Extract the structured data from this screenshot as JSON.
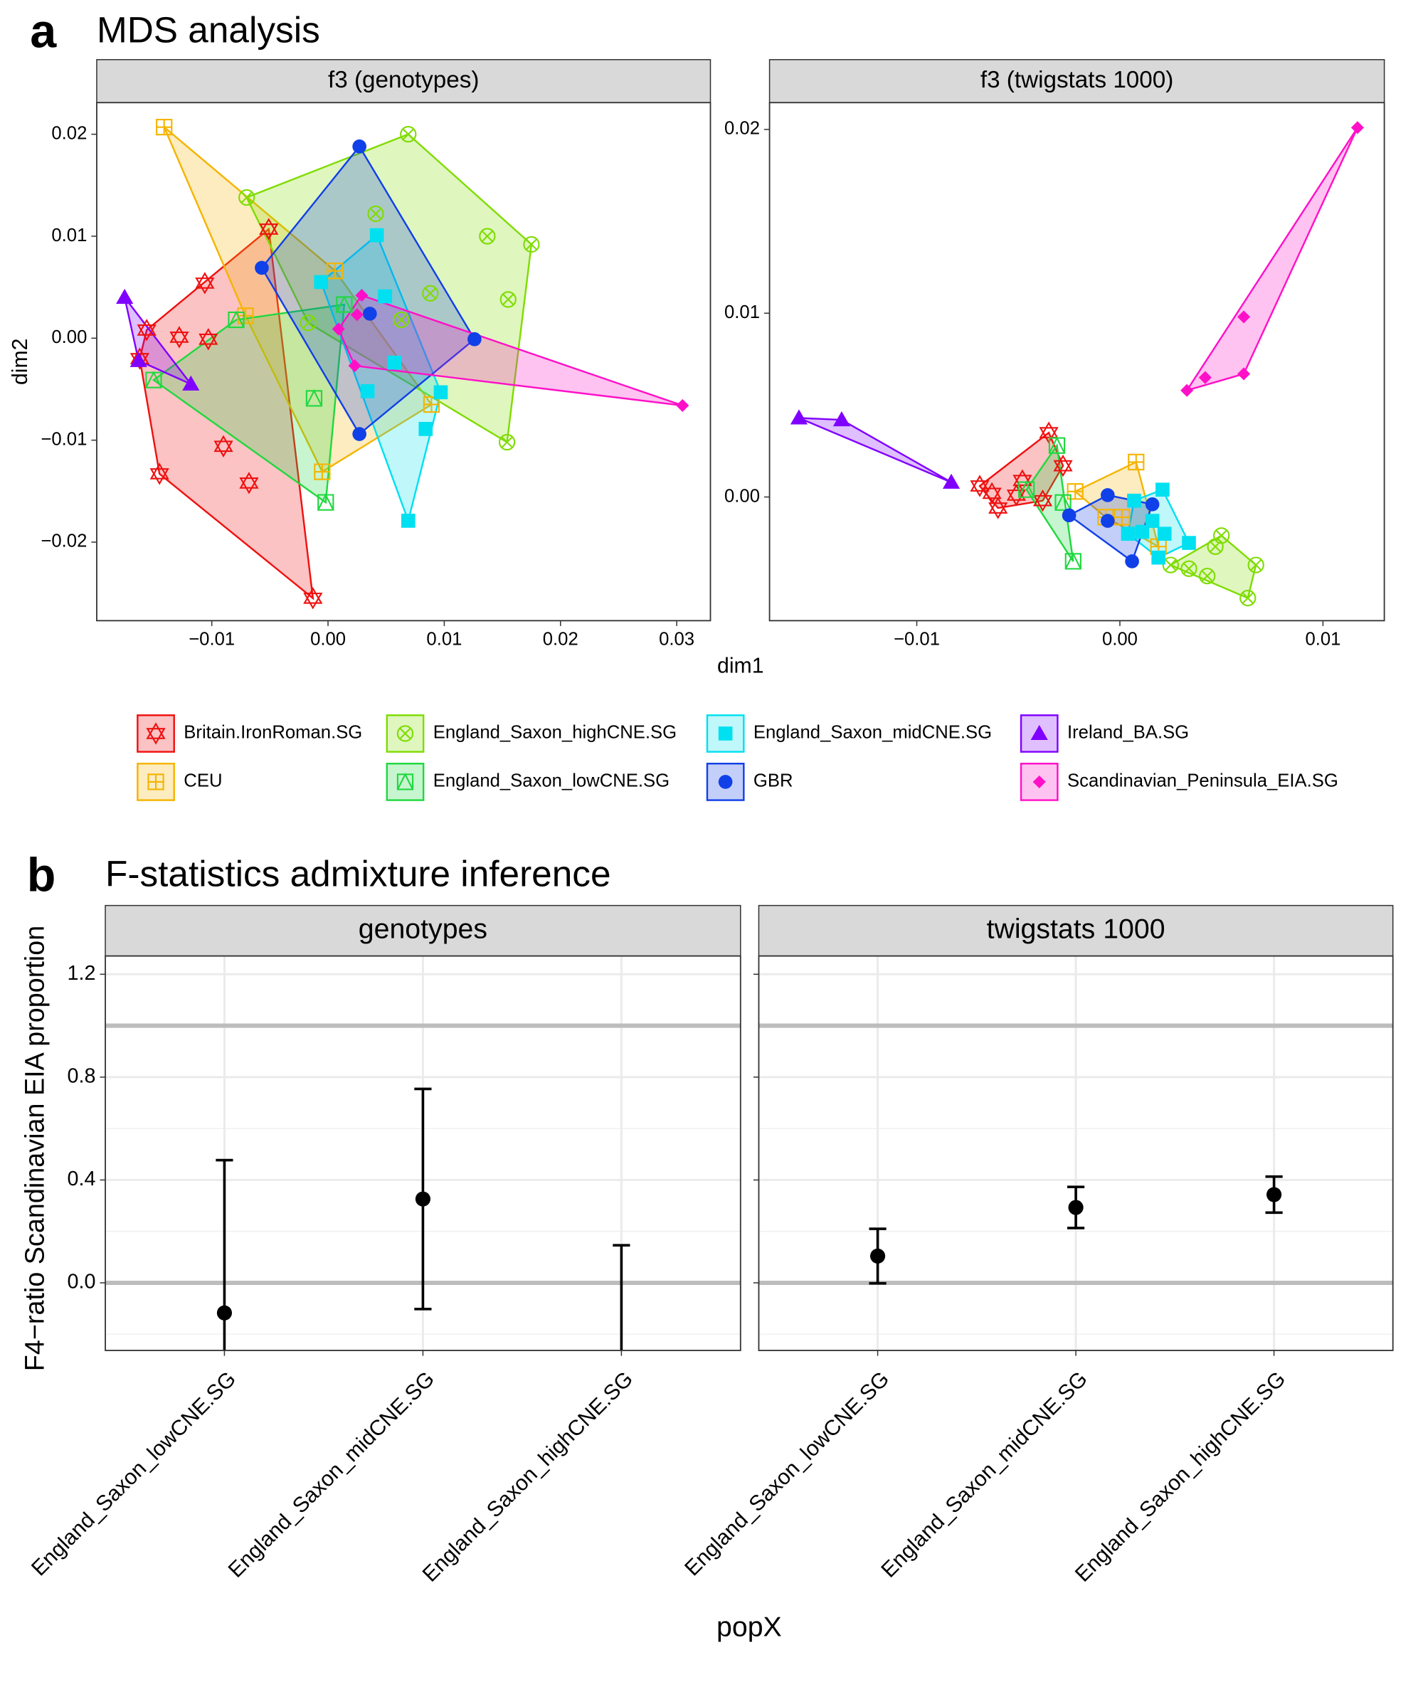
{
  "chart_data": [
    {
      "type": "scatter",
      "panel_label": "a",
      "title": "MDS analysis",
      "subtitle": "f3 (genotypes)",
      "x_label": "dim1",
      "y_label": "dim2",
      "legend": "bottom",
      "hulls": true,
      "xlim": [
        -0.0199,
        0.0329
      ],
      "ylim": [
        -0.0277,
        0.0231
      ],
      "xticks": [
        {
          "value": -0.01,
          "label": "−0.01"
        },
        {
          "value": 0,
          "label": "0.00"
        },
        0.01,
        0.02,
        0.03
      ],
      "yticks": [
        {
          "value": -0.02,
          "label": "−0.02"
        },
        {
          "value": -0.01,
          "label": "−0.01"
        },
        {
          "value": 0,
          "label": "0.00"
        },
        0.01,
        0.02
      ],
      "series": [
        {
          "name": "Britain.IronRoman.SG",
          "color": "#f01010",
          "shape": "hexagram",
          "x": [
            -0.0051,
            -0.0156,
            -0.0162,
            -0.0128,
            -0.0103,
            -0.0106,
            -0.009,
            -0.0068,
            -0.0145,
            -0.0013
          ],
          "y": [
            0.0107,
            0.0008,
            -0.002,
            0.0001,
            -0.0001,
            0.0054,
            -0.0106,
            -0.0142,
            -0.0133,
            -0.0255
          ]
        },
        {
          "name": "CEU",
          "color": "#f5b400",
          "shape": "squareplus",
          "x": [
            -0.0141,
            -0.0071,
            0.0006,
            -0.0005,
            0.0089
          ],
          "y": [
            0.0207,
            0.0022,
            0.0066,
            -0.0131,
            -0.0065
          ]
        },
        {
          "name": "England_Saxon_highCNE.SG",
          "color": "#7fdc00",
          "shape": "circlex",
          "x": [
            -0.007,
            0.0069,
            0.0041,
            0.0137,
            0.0175,
            0.0155,
            0.0088,
            0.0063,
            0.0154,
            -0.0017
          ],
          "y": [
            0.0138,
            0.02,
            0.0122,
            0.01,
            0.0092,
            0.0038,
            0.0044,
            0.0018,
            -0.0102,
            0.0015
          ]
        },
        {
          "name": "England_Saxon_lowCNE.SG",
          "color": "#20d840",
          "shape": "squaretriangle",
          "x": [
            -0.0079,
            -0.015,
            -0.0012,
            -0.0002,
            0.0014
          ],
          "y": [
            0.0018,
            -0.0041,
            -0.0059,
            -0.0161,
            0.0033
          ]
        },
        {
          "name": "England_Saxon_midCNE.SG",
          "color": "#00e0f0",
          "shape": "square",
          "x": [
            0.0042,
            -0.0006,
            0.0049,
            0.0057,
            0.0034,
            0.0097,
            0.0084,
            0.0069
          ],
          "y": [
            0.0101,
            0.0055,
            0.0041,
            -0.0024,
            -0.0052,
            -0.0053,
            -0.0089,
            -0.0179
          ]
        },
        {
          "name": "GBR",
          "color": "#1040e8",
          "shape": "circle",
          "x": [
            0.0027,
            -0.0057,
            0.0036,
            0.0126,
            0.0027
          ],
          "y": [
            0.0188,
            0.0069,
            0.0024,
            -0.0001,
            -0.0094
          ]
        },
        {
          "name": "Ireland_BA.SG",
          "color": "#8000ff",
          "shape": "triangle",
          "x": [
            -0.0175,
            -0.0163,
            -0.0118
          ],
          "y": [
            0.004,
            -0.0022,
            -0.0045
          ]
        },
        {
          "name": "Scandinavian_Peninsula_EIA.SG",
          "color": "#ff10c8",
          "shape": "diamond",
          "x": [
            0.0009,
            0.0025,
            0.0029,
            0.0023,
            0.0305
          ],
          "y": [
            0.0009,
            0.0023,
            0.0042,
            -0.0027,
            -0.0066
          ]
        }
      ]
    },
    {
      "type": "scatter",
      "subtitle": "f3 (twigstats 1000)",
      "hulls": true,
      "xlim": [
        -0.01725,
        0.01302
      ],
      "ylim": [
        -0.00673,
        0.02146
      ],
      "xticks": [
        {
          "value": -0.01,
          "label": "−0.01"
        },
        {
          "value": 0,
          "label": "0.00"
        },
        0.01
      ],
      "yticks": [
        {
          "value": 0,
          "label": "0.00"
        },
        0.01,
        0.02
      ],
      "series": [
        {
          "color": "#f01010",
          "shape": "hexagram",
          "x": [
            -0.0069,
            -0.006,
            -0.0048,
            -0.0035,
            -0.0028,
            -0.0038,
            -0.0051,
            -0.0063
          ],
          "y": [
            0.0006,
            -0.0006,
            0.0009,
            0.0035,
            0.0017,
            -0.0002,
            0.0001,
            0.0002
          ]
        },
        {
          "color": "#f5b400",
          "shape": "squareplus",
          "x": [
            0.0008,
            -0.0022,
            0.0001,
            0.0019,
            -0.0007
          ],
          "y": [
            0.0019,
            0.0003,
            -0.0011,
            -0.0027,
            -0.0011
          ]
        },
        {
          "color": "#7fdc00",
          "shape": "circlex",
          "x": [
            0.005,
            0.0063,
            0.0067,
            0.0043,
            0.0034,
            0.0025,
            0.0047
          ],
          "y": [
            -0.0021,
            -0.0055,
            -0.0037,
            -0.0043,
            -0.0039,
            -0.0037,
            -0.0027
          ]
        },
        {
          "color": "#20d840",
          "shape": "squaretriangle",
          "x": [
            -0.0031,
            -0.0023,
            -0.0028,
            -0.0046
          ],
          "y": [
            0.0028,
            -0.0035,
            -0.0003,
            0.0004
          ]
        },
        {
          "color": "#00e0f0",
          "shape": "square",
          "x": [
            0.0007,
            0.0021,
            0.0004,
            0.0011,
            0.0016,
            0.0022,
            0.0019,
            0.0034
          ],
          "y": [
            -0.0002,
            0.0004,
            -0.002,
            -0.0019,
            -0.0013,
            -0.002,
            -0.0033,
            -0.0025
          ]
        },
        {
          "color": "#1040e8",
          "shape": "circle",
          "x": [
            -0.0025,
            -0.0006,
            0.0016,
            0.0006,
            -0.0006
          ],
          "y": [
            -0.001,
            0.0001,
            -0.0004,
            -0.0035,
            -0.0013
          ]
        },
        {
          "color": "#8000ff",
          "shape": "triangle",
          "x": [
            -0.0158,
            -0.0137,
            -0.0083
          ],
          "y": [
            0.0043,
            0.0042,
            0.0008
          ]
        },
        {
          "color": "#ff10c8",
          "shape": "diamond",
          "x": [
            0.0117,
            0.0061,
            0.0061,
            0.0042,
            0.0033
          ],
          "y": [
            0.0201,
            0.0098,
            0.0067,
            0.0065,
            0.0058
          ]
        }
      ]
    },
    {
      "type": "errorbar",
      "panel_label": "b",
      "title": "F-statistics admixture inference",
      "subtitle": "genotypes",
      "x_label": "popX",
      "y_label": "F4−ratio Scandinavian EIA proportion",
      "categories": [
        "England_Saxon_lowCNE.SG",
        "England_Saxon_midCNE.SG",
        "England_Saxon_highCNE.SG"
      ],
      "values": [
        -0.117,
        0.326,
        -0.3
      ],
      "errors": [
        0.594,
        0.428,
        0.446
      ],
      "color": "#000000",
      "ylim": [
        -0.263,
        1.271
      ],
      "yticks": [
        {
          "value": 0,
          "label": "0.0"
        },
        0.4,
        0.8,
        1.2
      ],
      "hlines": [
        0,
        1
      ],
      "grid": true
    },
    {
      "type": "errorbar",
      "subtitle": "twigstats 1000",
      "categories": [
        "England_Saxon_lowCNE.SG",
        "England_Saxon_midCNE.SG",
        "England_Saxon_highCNE.SG"
      ],
      "values": [
        0.104,
        0.293,
        0.343
      ],
      "errors": [
        0.106,
        0.08,
        0.07
      ],
      "color": "#000000",
      "ylim": [
        -0.263,
        1.271
      ],
      "yticks": [
        {
          "value": 0,
          "label": "0.0"
        },
        0.4,
        0.8,
        1.2
      ],
      "hlines": [
        0,
        1
      ],
      "grid": true
    }
  ]
}
